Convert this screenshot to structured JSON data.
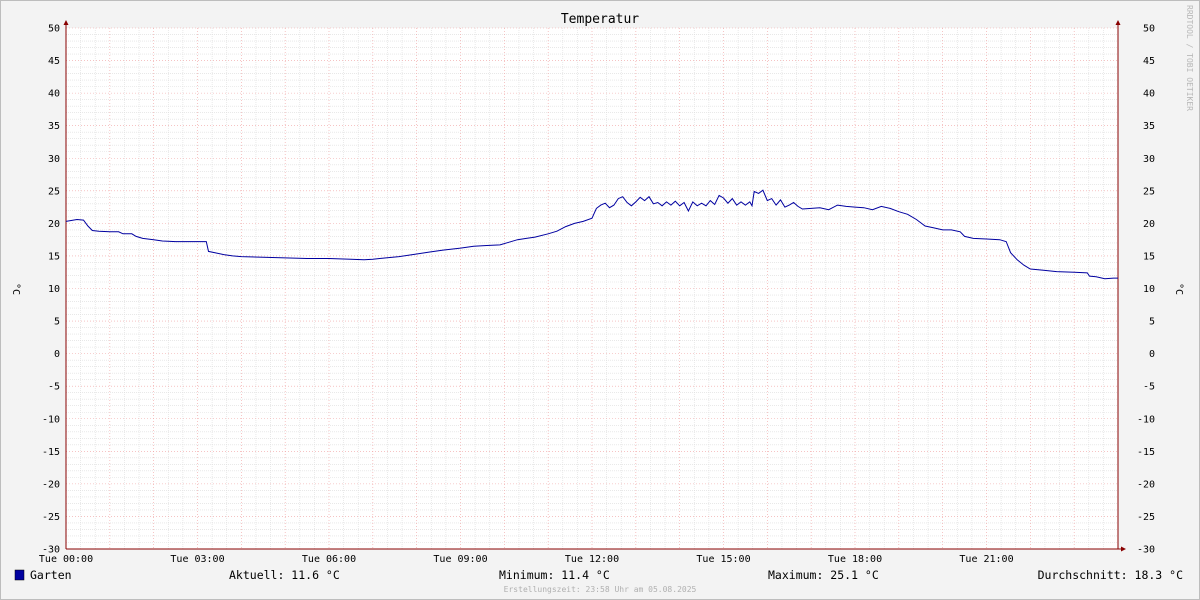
{
  "chart_data": {
    "type": "line",
    "title": "Temperatur",
    "ylabel": "°C",
    "ylabel_right": "°C",
    "ylim": [
      -30,
      50
    ],
    "y_ticks": [
      50,
      45,
      40,
      35,
      30,
      25,
      20,
      15,
      10,
      5,
      0,
      -5,
      -10,
      -15,
      -20,
      -25,
      -30
    ],
    "x_range_hours": [
      0,
      24
    ],
    "x_ticks": [
      {
        "hour": 0,
        "label": "Tue 00:00"
      },
      {
        "hour": 3,
        "label": "Tue 03:00"
      },
      {
        "hour": 6,
        "label": "Tue 06:00"
      },
      {
        "hour": 9,
        "label": "Tue 09:00"
      },
      {
        "hour": 12,
        "label": "Tue 12:00"
      },
      {
        "hour": 15,
        "label": "Tue 15:00"
      },
      {
        "hour": 18,
        "label": "Tue 18:00"
      },
      {
        "hour": 21,
        "label": "Tue 21:00"
      }
    ],
    "grid": true,
    "series": [
      {
        "name": "Garten",
        "color": "#0000a0",
        "points": [
          [
            0.0,
            20.3
          ],
          [
            0.25,
            20.6
          ],
          [
            0.4,
            20.5
          ],
          [
            0.5,
            19.6
          ],
          [
            0.6,
            18.9
          ],
          [
            0.75,
            18.8
          ],
          [
            1.0,
            18.7
          ],
          [
            1.2,
            18.7
          ],
          [
            1.3,
            18.4
          ],
          [
            1.5,
            18.4
          ],
          [
            1.6,
            18.0
          ],
          [
            1.75,
            17.7
          ],
          [
            2.0,
            17.5
          ],
          [
            2.2,
            17.3
          ],
          [
            2.5,
            17.2
          ],
          [
            3.0,
            17.2
          ],
          [
            3.2,
            17.2
          ],
          [
            3.25,
            15.7
          ],
          [
            3.4,
            15.5
          ],
          [
            3.6,
            15.2
          ],
          [
            3.8,
            15.0
          ],
          [
            4.0,
            14.9
          ],
          [
            4.5,
            14.8
          ],
          [
            5.0,
            14.7
          ],
          [
            5.5,
            14.6
          ],
          [
            6.0,
            14.6
          ],
          [
            6.5,
            14.5
          ],
          [
            6.8,
            14.4
          ],
          [
            7.0,
            14.5
          ],
          [
            7.3,
            14.7
          ],
          [
            7.6,
            14.9
          ],
          [
            8.0,
            15.3
          ],
          [
            8.3,
            15.6
          ],
          [
            8.6,
            15.9
          ],
          [
            9.0,
            16.2
          ],
          [
            9.3,
            16.5
          ],
          [
            9.6,
            16.6
          ],
          [
            9.9,
            16.7
          ],
          [
            10.1,
            17.1
          ],
          [
            10.3,
            17.5
          ],
          [
            10.5,
            17.7
          ],
          [
            10.7,
            17.9
          ],
          [
            11.0,
            18.4
          ],
          [
            11.2,
            18.8
          ],
          [
            11.4,
            19.5
          ],
          [
            11.6,
            20.0
          ],
          [
            11.8,
            20.3
          ],
          [
            12.0,
            20.8
          ],
          [
            12.1,
            22.3
          ],
          [
            12.2,
            22.8
          ],
          [
            12.3,
            23.1
          ],
          [
            12.4,
            22.4
          ],
          [
            12.5,
            22.8
          ],
          [
            12.6,
            23.8
          ],
          [
            12.7,
            24.1
          ],
          [
            12.8,
            23.2
          ],
          [
            12.9,
            22.7
          ],
          [
            13.0,
            23.3
          ],
          [
            13.1,
            24.0
          ],
          [
            13.2,
            23.5
          ],
          [
            13.3,
            24.1
          ],
          [
            13.4,
            23.0
          ],
          [
            13.5,
            23.2
          ],
          [
            13.6,
            22.7
          ],
          [
            13.7,
            23.3
          ],
          [
            13.8,
            22.8
          ],
          [
            13.9,
            23.4
          ],
          [
            14.0,
            22.7
          ],
          [
            14.1,
            23.2
          ],
          [
            14.2,
            21.9
          ],
          [
            14.3,
            23.3
          ],
          [
            14.4,
            22.7
          ],
          [
            14.5,
            23.1
          ],
          [
            14.6,
            22.7
          ],
          [
            14.7,
            23.5
          ],
          [
            14.8,
            22.9
          ],
          [
            14.9,
            24.3
          ],
          [
            15.0,
            23.9
          ],
          [
            15.1,
            23.1
          ],
          [
            15.2,
            23.8
          ],
          [
            15.3,
            22.8
          ],
          [
            15.4,
            23.3
          ],
          [
            15.5,
            22.8
          ],
          [
            15.6,
            23.3
          ],
          [
            15.65,
            22.7
          ],
          [
            15.7,
            24.9
          ],
          [
            15.8,
            24.6
          ],
          [
            15.9,
            25.1
          ],
          [
            16.0,
            23.5
          ],
          [
            16.1,
            23.8
          ],
          [
            16.2,
            22.8
          ],
          [
            16.3,
            23.6
          ],
          [
            16.4,
            22.5
          ],
          [
            16.5,
            22.8
          ],
          [
            16.6,
            23.2
          ],
          [
            16.7,
            22.6
          ],
          [
            16.8,
            22.2
          ],
          [
            17.0,
            22.3
          ],
          [
            17.2,
            22.4
          ],
          [
            17.4,
            22.1
          ],
          [
            17.6,
            22.8
          ],
          [
            17.8,
            22.6
          ],
          [
            18.0,
            22.5
          ],
          [
            18.2,
            22.4
          ],
          [
            18.4,
            22.1
          ],
          [
            18.6,
            22.6
          ],
          [
            18.8,
            22.3
          ],
          [
            19.0,
            21.8
          ],
          [
            19.2,
            21.4
          ],
          [
            19.4,
            20.6
          ],
          [
            19.6,
            19.6
          ],
          [
            19.8,
            19.3
          ],
          [
            20.0,
            19.0
          ],
          [
            20.2,
            19.0
          ],
          [
            20.4,
            18.7
          ],
          [
            20.5,
            18.0
          ],
          [
            20.7,
            17.7
          ],
          [
            21.0,
            17.6
          ],
          [
            21.3,
            17.5
          ],
          [
            21.45,
            17.2
          ],
          [
            21.55,
            15.5
          ],
          [
            21.7,
            14.4
          ],
          [
            21.85,
            13.6
          ],
          [
            22.0,
            13.0
          ],
          [
            22.3,
            12.8
          ],
          [
            22.6,
            12.6
          ],
          [
            23.0,
            12.5
          ],
          [
            23.3,
            12.4
          ],
          [
            23.35,
            11.9
          ],
          [
            23.5,
            11.8
          ],
          [
            23.7,
            11.5
          ],
          [
            23.9,
            11.6
          ],
          [
            24.0,
            11.6
          ]
        ]
      }
    ]
  },
  "legend": {
    "series_name": "Garten",
    "series_color": "#0000a0",
    "current": "Aktuell: 11.6 °C",
    "minimum": "Minimum: 11.4 °C",
    "maximum": "Maximum: 25.1 °C",
    "average": "Durchschnitt: 18.3 °C"
  },
  "footer": "Erstellungszeit: 23:58 Uhr am 05.08.2025",
  "watermark": "RRDTOOL / TOBI OETIKER"
}
